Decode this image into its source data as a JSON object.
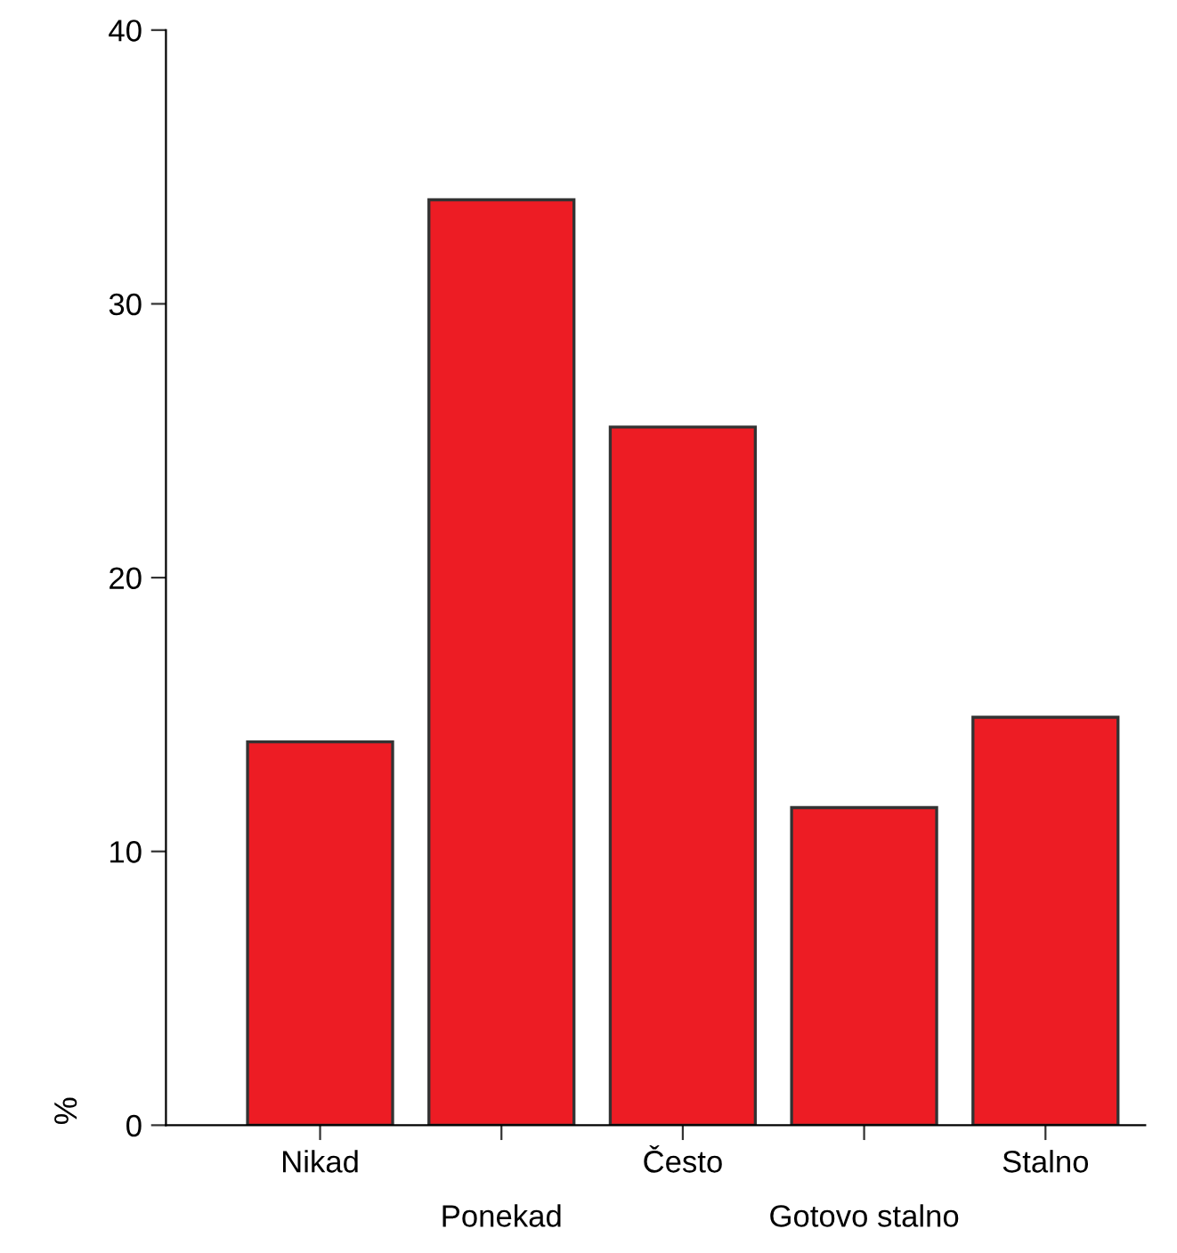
{
  "chart_data": {
    "type": "bar",
    "ylabel": "%",
    "categories": [
      "Nikad",
      "Ponekad",
      "Često",
      "Gotovo stalno",
      "Stalno"
    ],
    "values": [
      14.0,
      33.8,
      25.5,
      11.6,
      14.9
    ],
    "color": "#ed1c24",
    "ylim": [
      0,
      40
    ],
    "yticks": [
      0,
      10,
      20,
      30,
      40
    ],
    "grid": false
  }
}
